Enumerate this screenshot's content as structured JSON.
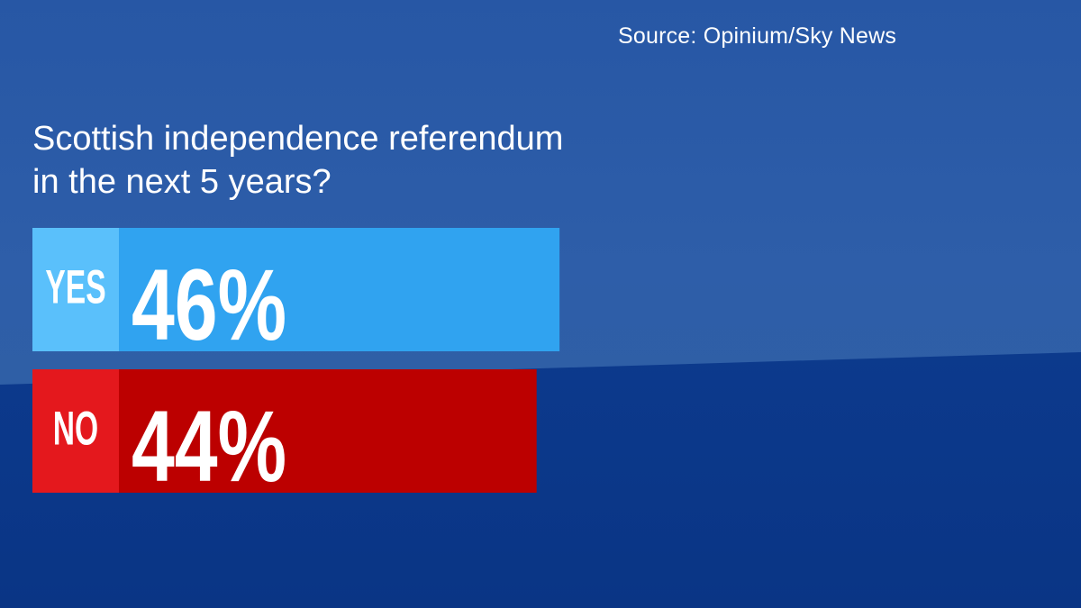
{
  "source": "Source: Opinium/Sky News",
  "question_lines": [
    "Scottish independence referendum",
    "in the next 5 years?"
  ],
  "colors": {
    "yes_label_bg": "#5ac0fb",
    "yes_bar": "#30a3f0",
    "no_label_bg": "#e4181d",
    "no_bar": "#bc0000",
    "background_top": "#2757a5",
    "background_bottom": "#0c3a8d"
  },
  "chart_data": {
    "type": "bar",
    "orientation": "horizontal",
    "title": "Scottish independence referendum in the next 5 years?",
    "categories": [
      "YES",
      "NO"
    ],
    "values": [
      46,
      44
    ],
    "value_labels": [
      "46%",
      "44%"
    ],
    "unit": "%",
    "series_colors": [
      "#30a3f0",
      "#bc0000"
    ],
    "label_colors": [
      "#5ac0fb",
      "#e4181d"
    ],
    "grid": false,
    "legend": "none"
  }
}
